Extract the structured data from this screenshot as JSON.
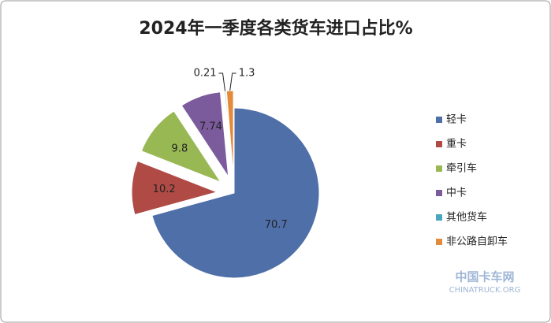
{
  "chart_data": {
    "type": "pie",
    "title": "2024年一季度各类货车进口占比%",
    "categories": [
      "轻卡",
      "重卡",
      "牵引车",
      "中卡",
      "其他货车",
      "非公路自卸车"
    ],
    "values": [
      70.7,
      10.2,
      9.8,
      7.74,
      0.21,
      1.3
    ],
    "colors": [
      "#4f6fa8",
      "#b04a45",
      "#98b854",
      "#7b5b9c",
      "#4aa5c0",
      "#e48b3a"
    ],
    "legend": "right"
  },
  "watermark": {
    "name": "中国卡车网",
    "site": "CHINATRUCK.ORG"
  }
}
